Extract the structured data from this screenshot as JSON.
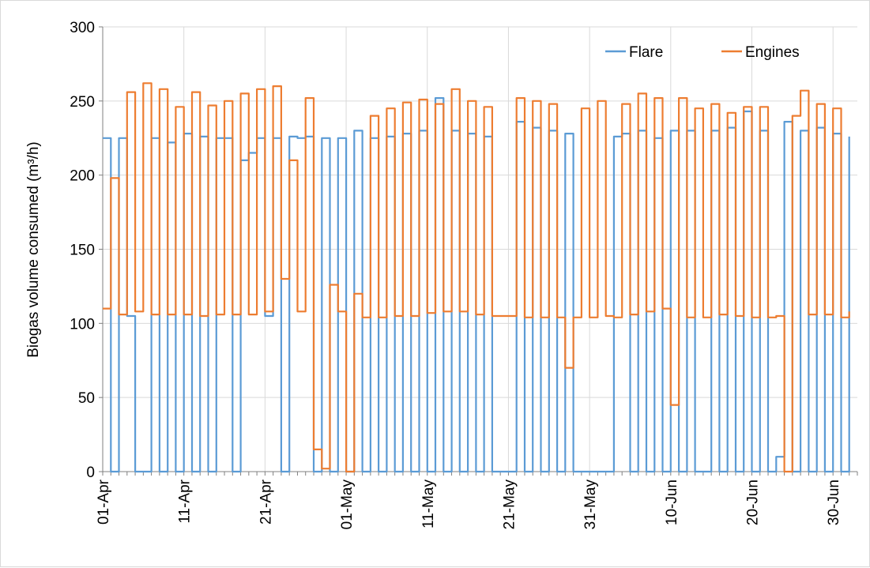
{
  "chart_data": {
    "type": "line",
    "title": "",
    "ylabel": "Biogas volume consumed (m³/h)",
    "xlabel": "",
    "ylim": [
      0,
      300
    ],
    "yticks": [
      0,
      50,
      100,
      150,
      200,
      250,
      300
    ],
    "xlim": [
      "2021-04-01",
      "2021-07-03"
    ],
    "xticks": [
      {
        "date": "2021-04-01",
        "label": "01-Apr"
      },
      {
        "date": "2021-04-11",
        "label": "11-Apr"
      },
      {
        "date": "2021-04-21",
        "label": "21-Apr"
      },
      {
        "date": "2021-05-01",
        "label": "01-May"
      },
      {
        "date": "2021-05-11",
        "label": "11-May"
      },
      {
        "date": "2021-05-21",
        "label": "21-May"
      },
      {
        "date": "2021-05-31",
        "label": "31-May"
      },
      {
        "date": "2021-06-10",
        "label": "10-Jun"
      },
      {
        "date": "2021-06-20",
        "label": "20-Jun"
      },
      {
        "date": "2021-06-30",
        "label": "30-Jun"
      }
    ],
    "grid": true,
    "legend": "top-right",
    "series": [
      {
        "name": "Flare",
        "color": "#5b9bd5",
        "points": [
          [
            "2021-04-01",
            225
          ],
          [
            "2021-04-02",
            0
          ],
          [
            "2021-04-03",
            225
          ],
          [
            "2021-04-04",
            105
          ],
          [
            "2021-04-05",
            0
          ],
          [
            "2021-04-06",
            0
          ],
          [
            "2021-04-07",
            225
          ],
          [
            "2021-04-08",
            0
          ],
          [
            "2021-04-09",
            222
          ],
          [
            "2021-04-10",
            0
          ],
          [
            "2021-04-11",
            228
          ],
          [
            "2021-04-12",
            0
          ],
          [
            "2021-04-13",
            226
          ],
          [
            "2021-04-14",
            0
          ],
          [
            "2021-04-15",
            225
          ],
          [
            "2021-04-16",
            225
          ],
          [
            "2021-04-17",
            0
          ],
          [
            "2021-04-18",
            210
          ],
          [
            "2021-04-19",
            215
          ],
          [
            "2021-04-20",
            225
          ],
          [
            "2021-04-21",
            105
          ],
          [
            "2021-04-22",
            225
          ],
          [
            "2021-04-23",
            0
          ],
          [
            "2021-04-24",
            226
          ],
          [
            "2021-04-25",
            225
          ],
          [
            "2021-04-26",
            226
          ],
          [
            "2021-04-27",
            0
          ],
          [
            "2021-04-28",
            225
          ],
          [
            "2021-04-29",
            0
          ],
          [
            "2021-04-30",
            225
          ],
          [
            "2021-05-01",
            0
          ],
          [
            "2021-05-02",
            230
          ],
          [
            "2021-05-03",
            0
          ],
          [
            "2021-05-04",
            225
          ],
          [
            "2021-05-05",
            0
          ],
          [
            "2021-05-06",
            226
          ],
          [
            "2021-05-07",
            0
          ],
          [
            "2021-05-08",
            228
          ],
          [
            "2021-05-09",
            0
          ],
          [
            "2021-05-10",
            230
          ],
          [
            "2021-05-11",
            0
          ],
          [
            "2021-05-12",
            252
          ],
          [
            "2021-05-13",
            0
          ],
          [
            "2021-05-14",
            230
          ],
          [
            "2021-05-15",
            0
          ],
          [
            "2021-05-16",
            228
          ],
          [
            "2021-05-17",
            0
          ],
          [
            "2021-05-18",
            226
          ],
          [
            "2021-05-19",
            0
          ],
          [
            "2021-05-20",
            0
          ],
          [
            "2021-05-21",
            0
          ],
          [
            "2021-05-22",
            236
          ],
          [
            "2021-05-23",
            0
          ],
          [
            "2021-05-24",
            232
          ],
          [
            "2021-05-25",
            0
          ],
          [
            "2021-05-26",
            230
          ],
          [
            "2021-05-27",
            0
          ],
          [
            "2021-05-28",
            228
          ],
          [
            "2021-05-29",
            0
          ],
          [
            "2021-05-30",
            0
          ],
          [
            "2021-05-31",
            0
          ],
          [
            "2021-06-01",
            0
          ],
          [
            "2021-06-02",
            0
          ],
          [
            "2021-06-03",
            226
          ],
          [
            "2021-06-04",
            228
          ],
          [
            "2021-06-05",
            0
          ],
          [
            "2021-06-06",
            230
          ],
          [
            "2021-06-07",
            0
          ],
          [
            "2021-06-08",
            225
          ],
          [
            "2021-06-09",
            0
          ],
          [
            "2021-06-10",
            230
          ],
          [
            "2021-06-11",
            0
          ],
          [
            "2021-06-12",
            230
          ],
          [
            "2021-06-13",
            0
          ],
          [
            "2021-06-14",
            0
          ],
          [
            "2021-06-15",
            230
          ],
          [
            "2021-06-16",
            0
          ],
          [
            "2021-06-17",
            232
          ],
          [
            "2021-06-18",
            0
          ],
          [
            "2021-06-19",
            243
          ],
          [
            "2021-06-20",
            0
          ],
          [
            "2021-06-21",
            230
          ],
          [
            "2021-06-22",
            0
          ],
          [
            "2021-06-23",
            10
          ],
          [
            "2021-06-24",
            236
          ],
          [
            "2021-06-25",
            0
          ],
          [
            "2021-06-26",
            230
          ],
          [
            "2021-06-27",
            0
          ],
          [
            "2021-06-28",
            232
          ],
          [
            "2021-06-29",
            0
          ],
          [
            "2021-06-30",
            228
          ],
          [
            "2021-07-01",
            0
          ],
          [
            "2021-07-02",
            226
          ]
        ]
      },
      {
        "name": "Engines",
        "color": "#ed7d31",
        "points": [
          [
            "2021-04-01",
            110
          ],
          [
            "2021-04-02",
            198
          ],
          [
            "2021-04-03",
            106
          ],
          [
            "2021-04-04",
            256
          ],
          [
            "2021-04-05",
            108
          ],
          [
            "2021-04-06",
            262
          ],
          [
            "2021-04-07",
            106
          ],
          [
            "2021-04-08",
            258
          ],
          [
            "2021-04-09",
            106
          ],
          [
            "2021-04-10",
            246
          ],
          [
            "2021-04-11",
            106
          ],
          [
            "2021-04-12",
            256
          ],
          [
            "2021-04-13",
            105
          ],
          [
            "2021-04-14",
            247
          ],
          [
            "2021-04-15",
            106
          ],
          [
            "2021-04-16",
            250
          ],
          [
            "2021-04-17",
            106
          ],
          [
            "2021-04-18",
            255
          ],
          [
            "2021-04-19",
            106
          ],
          [
            "2021-04-20",
            258
          ],
          [
            "2021-04-21",
            108
          ],
          [
            "2021-04-22",
            260
          ],
          [
            "2021-04-23",
            130
          ],
          [
            "2021-04-24",
            210
          ],
          [
            "2021-04-25",
            108
          ],
          [
            "2021-04-26",
            252
          ],
          [
            "2021-04-27",
            15
          ],
          [
            "2021-04-28",
            2
          ],
          [
            "2021-04-29",
            126
          ],
          [
            "2021-04-30",
            108
          ],
          [
            "2021-05-01",
            0
          ],
          [
            "2021-05-02",
            120
          ],
          [
            "2021-05-03",
            104
          ],
          [
            "2021-05-04",
            240
          ],
          [
            "2021-05-05",
            104
          ],
          [
            "2021-05-06",
            245
          ],
          [
            "2021-05-07",
            105
          ],
          [
            "2021-05-08",
            249
          ],
          [
            "2021-05-09",
            105
          ],
          [
            "2021-05-10",
            251
          ],
          [
            "2021-05-11",
            107
          ],
          [
            "2021-05-12",
            248
          ],
          [
            "2021-05-13",
            108
          ],
          [
            "2021-05-14",
            258
          ],
          [
            "2021-05-15",
            108
          ],
          [
            "2021-05-16",
            250
          ],
          [
            "2021-05-17",
            106
          ],
          [
            "2021-05-18",
            246
          ],
          [
            "2021-05-19",
            105
          ],
          [
            "2021-05-20",
            105
          ],
          [
            "2021-05-21",
            105
          ],
          [
            "2021-05-22",
            252
          ],
          [
            "2021-05-23",
            104
          ],
          [
            "2021-05-24",
            250
          ],
          [
            "2021-05-25",
            104
          ],
          [
            "2021-05-26",
            248
          ],
          [
            "2021-05-27",
            104
          ],
          [
            "2021-05-28",
            70
          ],
          [
            "2021-05-29",
            104
          ],
          [
            "2021-05-30",
            245
          ],
          [
            "2021-05-31",
            104
          ],
          [
            "2021-06-01",
            250
          ],
          [
            "2021-06-02",
            105
          ],
          [
            "2021-06-03",
            104
          ],
          [
            "2021-06-04",
            248
          ],
          [
            "2021-06-05",
            106
          ],
          [
            "2021-06-06",
            255
          ],
          [
            "2021-06-07",
            108
          ],
          [
            "2021-06-08",
            252
          ],
          [
            "2021-06-09",
            110
          ],
          [
            "2021-06-10",
            45
          ],
          [
            "2021-06-11",
            252
          ],
          [
            "2021-06-12",
            104
          ],
          [
            "2021-06-13",
            245
          ],
          [
            "2021-06-14",
            104
          ],
          [
            "2021-06-15",
            248
          ],
          [
            "2021-06-16",
            106
          ],
          [
            "2021-06-17",
            242
          ],
          [
            "2021-06-18",
            105
          ],
          [
            "2021-06-19",
            246
          ],
          [
            "2021-06-20",
            104
          ],
          [
            "2021-06-21",
            246
          ],
          [
            "2021-06-22",
            104
          ],
          [
            "2021-06-23",
            105
          ],
          [
            "2021-06-24",
            0
          ],
          [
            "2021-06-25",
            240
          ],
          [
            "2021-06-26",
            257
          ],
          [
            "2021-06-27",
            106
          ],
          [
            "2021-06-28",
            248
          ],
          [
            "2021-06-29",
            106
          ],
          [
            "2021-06-30",
            245
          ],
          [
            "2021-07-01",
            104
          ],
          [
            "2021-07-02",
            108
          ]
        ]
      }
    ]
  }
}
